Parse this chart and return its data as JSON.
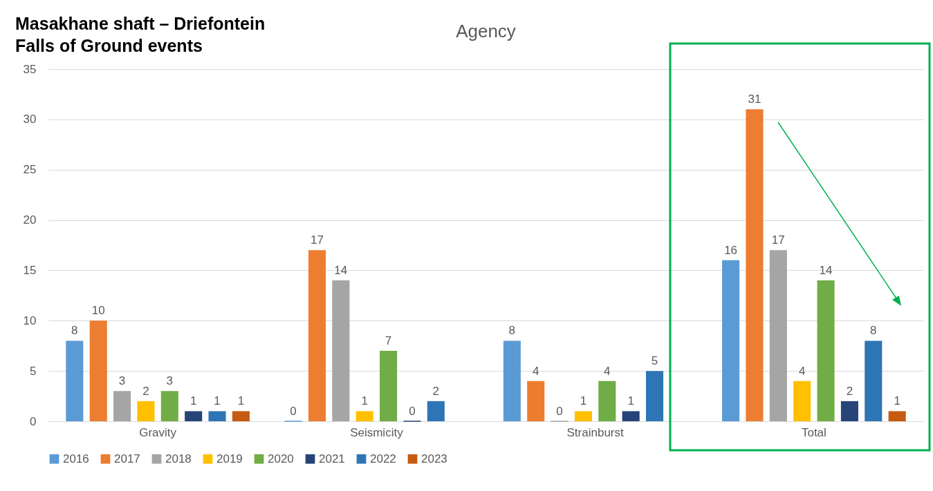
{
  "chart_data": {
    "type": "bar",
    "title": "Masakhane shaft – Driefontein Falls of Ground events",
    "subtitle": "Agency",
    "categories": [
      "Gravity",
      "Seismicity",
      "Strainburst",
      "Total"
    ],
    "series": [
      {
        "name": "2016",
        "color": "#5b9bd5",
        "values": [
          8,
          0,
          8,
          16
        ]
      },
      {
        "name": "2017",
        "color": "#ed7d31",
        "values": [
          10,
          17,
          4,
          31
        ]
      },
      {
        "name": "2018",
        "color": "#a5a5a5",
        "values": [
          3,
          14,
          0,
          17
        ]
      },
      {
        "name": "2019",
        "color": "#ffc000",
        "values": [
          2,
          1,
          1,
          4
        ]
      },
      {
        "name": "2020",
        "color": "#70ad47",
        "values": [
          3,
          7,
          4,
          14
        ]
      },
      {
        "name": "2021",
        "color": "#264478",
        "values": [
          1,
          0,
          1,
          2
        ]
      },
      {
        "name": "2022",
        "color": "#2e75b6",
        "values": [
          1,
          2,
          5,
          8
        ]
      },
      {
        "name": "2023",
        "color": "#c55a11",
        "values": [
          1,
          null,
          null,
          1
        ]
      }
    ],
    "ylim": [
      0,
      35
    ],
    "yticks": [
      0,
      5,
      10,
      15,
      20,
      25,
      30,
      35
    ],
    "grid": "y",
    "legend": "bottom",
    "data_labels": true
  }
}
